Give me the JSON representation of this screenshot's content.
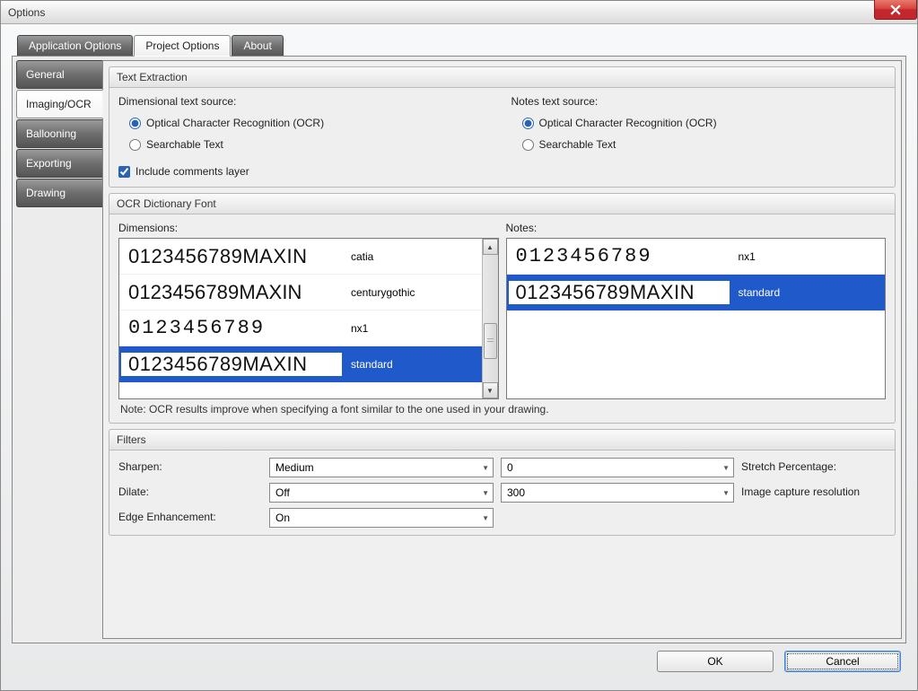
{
  "window": {
    "title": "Options"
  },
  "top_tabs": {
    "app": "Application Options",
    "project": "Project Options",
    "about": "About"
  },
  "side_tabs": {
    "general": "General",
    "imaging": "Imaging/OCR",
    "ballooning": "Ballooning",
    "exporting": "Exporting",
    "drawing": "Drawing"
  },
  "text_extraction": {
    "title": "Text Extraction",
    "dimensional_label": "Dimensional text source:",
    "notes_label": "Notes text source:",
    "ocr_option": "Optical Character Recognition (OCR)",
    "searchable_option": "Searchable Text",
    "include_comments": "Include comments layer"
  },
  "ocr_font": {
    "title": "OCR Dictionary Font",
    "dimensions_label": "Dimensions:",
    "notes_label": "Notes:",
    "dimensions_list": [
      {
        "sample": "0123456789MAXIN",
        "name": "catia",
        "cls": "sample-catia",
        "selected": false
      },
      {
        "sample": "0123456789MAXIN",
        "name": "centurygothic",
        "cls": "sample-century",
        "selected": false
      },
      {
        "sample": "0123456789",
        "name": "nx1",
        "cls": "sample-nx1",
        "selected": false
      },
      {
        "sample": "0123456789MAXIN",
        "name": "standard",
        "cls": "sample-standard",
        "selected": true
      }
    ],
    "notes_list": [
      {
        "sample": "0123456789",
        "name": "nx1",
        "cls": "sample-nx1",
        "selected": false
      },
      {
        "sample": "0123456789MAXIN",
        "name": "standard",
        "cls": "sample-standard",
        "selected": true
      }
    ],
    "note": "Note:  OCR results improve when specifying a font similar to the one used in your drawing."
  },
  "filters": {
    "title": "Filters",
    "sharpen_label": "Sharpen:",
    "sharpen_value": "Medium",
    "stretch_value": "0",
    "stretch_label": "Stretch Percentage:",
    "dilate_label": "Dilate:",
    "dilate_value": "Off",
    "resolution_value": "300",
    "resolution_label": "Image capture resolution",
    "edge_label": "Edge Enhancement:",
    "edge_value": "On"
  },
  "buttons": {
    "ok": "OK",
    "cancel": "Cancel"
  },
  "colors": {
    "selection": "#2059c9",
    "panel": "#ececec"
  }
}
